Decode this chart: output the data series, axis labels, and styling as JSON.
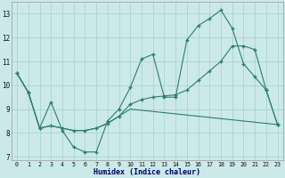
{
  "xlabel": "Humidex (Indice chaleur)",
  "x": [
    0,
    1,
    2,
    3,
    4,
    5,
    6,
    7,
    8,
    9,
    10,
    11,
    12,
    13,
    14,
    15,
    16,
    17,
    18,
    19,
    20,
    21,
    22,
    23
  ],
  "line1": [
    10.5,
    9.7,
    8.2,
    9.3,
    8.1,
    7.4,
    7.2,
    7.2,
    8.5,
    9.0,
    9.9,
    11.1,
    11.3,
    9.5,
    9.5,
    11.9,
    12.5,
    12.8,
    13.15,
    12.4,
    10.9,
    10.35,
    9.8,
    8.35
  ],
  "line2": [
    10.5,
    9.7,
    8.2,
    8.3,
    8.2,
    8.1,
    8.1,
    8.2,
    8.4,
    8.7,
    9.2,
    9.4,
    9.5,
    9.55,
    9.6,
    9.8,
    10.2,
    10.6,
    11.0,
    11.65,
    11.65,
    11.5,
    9.8,
    8.35
  ],
  "line3": [
    10.5,
    9.7,
    8.2,
    8.3,
    8.2,
    8.1,
    8.1,
    8.2,
    8.4,
    8.7,
    9.0,
    8.95,
    8.9,
    8.85,
    8.8,
    8.75,
    8.7,
    8.65,
    8.6,
    8.55,
    8.5,
    8.45,
    8.4,
    8.35
  ],
  "line_color": "#2d7d6e",
  "bg_color": "#cce9e9",
  "grid_color": "#aad4d4",
  "ylim": [
    6.85,
    13.5
  ],
  "yticks": [
    7,
    8,
    9,
    10,
    11,
    12,
    13
  ],
  "xticks": [
    0,
    1,
    2,
    3,
    4,
    5,
    6,
    7,
    8,
    9,
    10,
    11,
    12,
    13,
    14,
    15,
    16,
    17,
    18,
    19,
    20,
    21,
    22,
    23
  ]
}
